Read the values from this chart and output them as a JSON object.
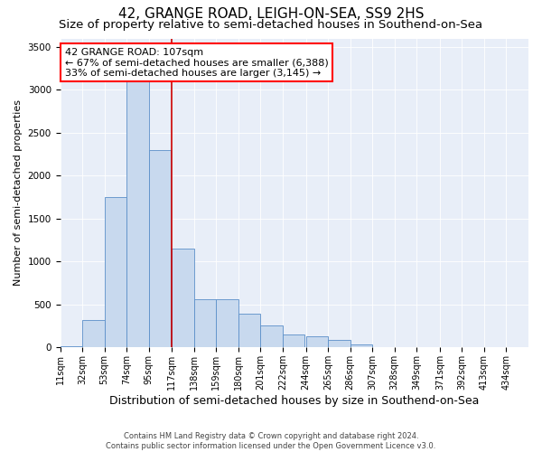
{
  "title": "42, GRANGE ROAD, LEIGH-ON-SEA, SS9 2HS",
  "subtitle": "Size of property relative to semi-detached houses in Southend-on-Sea",
  "xlabel": "Distribution of semi-detached houses by size in Southend-on-Sea",
  "ylabel": "Number of semi-detached properties",
  "annotation_line1": "42 GRANGE ROAD: 107sqm",
  "annotation_line2": "← 67% of semi-detached houses are smaller (6,388)",
  "annotation_line3": "33% of semi-detached houses are larger (3,145) →",
  "property_size": 107,
  "bar_values": [
    10,
    315,
    1750,
    3100,
    2300,
    1150,
    560,
    560,
    390,
    260,
    155,
    130,
    90,
    40,
    0,
    0,
    0,
    0,
    0,
    0
  ],
  "bin_edges": [
    11,
    32,
    53,
    74,
    95,
    117,
    138,
    159,
    180,
    201,
    222,
    244,
    265,
    286,
    307,
    328,
    349,
    371,
    392,
    413,
    434
  ],
  "tick_labels": [
    "11sqm",
    "32sqm",
    "53sqm",
    "74sqm",
    "95sqm",
    "117sqm",
    "138sqm",
    "159sqm",
    "180sqm",
    "201sqm",
    "222sqm",
    "244sqm",
    "265sqm",
    "286sqm",
    "307sqm",
    "328sqm",
    "349sqm",
    "371sqm",
    "392sqm",
    "413sqm",
    "434sqm"
  ],
  "bar_color": "#c8d9ee",
  "bar_edge_color": "#5b8fc9",
  "vline_color": "#cc0000",
  "ylim": [
    0,
    3600
  ],
  "yticks": [
    0,
    500,
    1000,
    1500,
    2000,
    2500,
    3000,
    3500
  ],
  "title_fontsize": 11,
  "subtitle_fontsize": 9.5,
  "annotation_fontsize": 8,
  "xlabel_fontsize": 9,
  "ylabel_fontsize": 8,
  "tick_fontsize": 7,
  "ytick_fontsize": 7.5,
  "footer_line1": "Contains HM Land Registry data © Crown copyright and database right 2024.",
  "footer_line2": "Contains public sector information licensed under the Open Government Licence v3.0.",
  "plot_bg_color": "#e8eef8"
}
